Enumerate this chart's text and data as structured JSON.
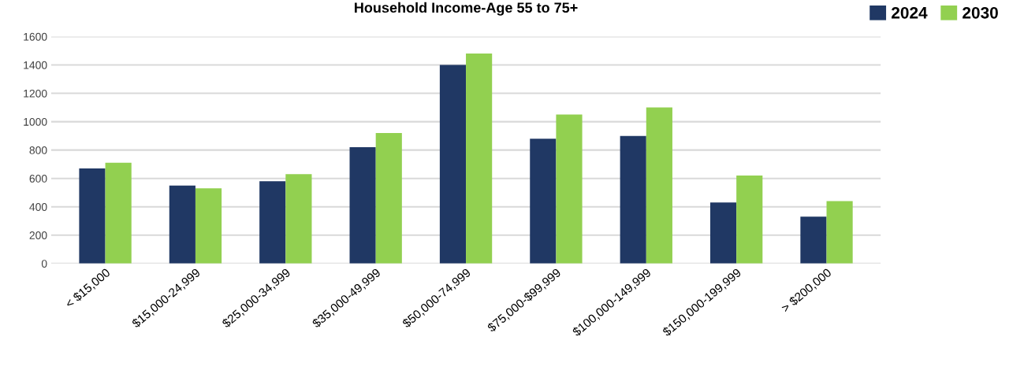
{
  "chart_data": {
    "type": "bar",
    "title": "Household Income-Age 55 to 75+",
    "categories": [
      "< $15,000",
      "$15,000-24,999",
      "$25,000-34,999",
      "$35,000-49,999",
      "$50,000-74,999",
      "$75,000-$99,999",
      "$100,000-149,999",
      "$150,000-199,999",
      "> $200,000"
    ],
    "series": [
      {
        "name": "2024",
        "color": "#203864",
        "values": [
          670,
          550,
          580,
          820,
          1400,
          880,
          900,
          430,
          330
        ]
      },
      {
        "name": "2030",
        "color": "#92d050",
        "values": [
          710,
          530,
          630,
          920,
          1480,
          1050,
          1100,
          620,
          440
        ]
      }
    ],
    "ylim": [
      0,
      1600
    ],
    "yticks": [
      0,
      200,
      400,
      600,
      800,
      1000,
      1200,
      1400,
      1600
    ],
    "grid": "y",
    "legend": "top right"
  }
}
